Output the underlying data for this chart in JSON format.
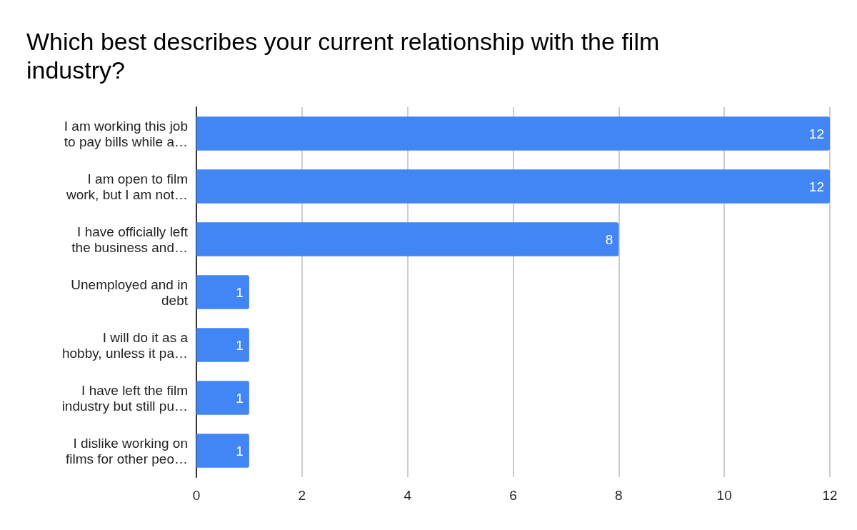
{
  "chart_data": {
    "type": "bar",
    "orientation": "horizontal",
    "title": "Which best describes your current relationship with the film industry?",
    "categories": [
      "I am working this job\nto pay bills while a…",
      "I am open to film\nwork, but I am not…",
      "I have officially left\nthe business and…",
      "Unemployed and in\ndebt",
      "I will do it as a\nhobby, unless it pa…",
      "I have left the film\nindustry but still pu…",
      "I dislike working on\nfilms for other peo…"
    ],
    "values": [
      12,
      12,
      8,
      1,
      1,
      1,
      1
    ],
    "color": "#4285f4",
    "xlim": [
      0,
      12
    ],
    "xticks": [
      0,
      2,
      4,
      6,
      8,
      10,
      12
    ],
    "grid": "x",
    "data_labels": true
  }
}
